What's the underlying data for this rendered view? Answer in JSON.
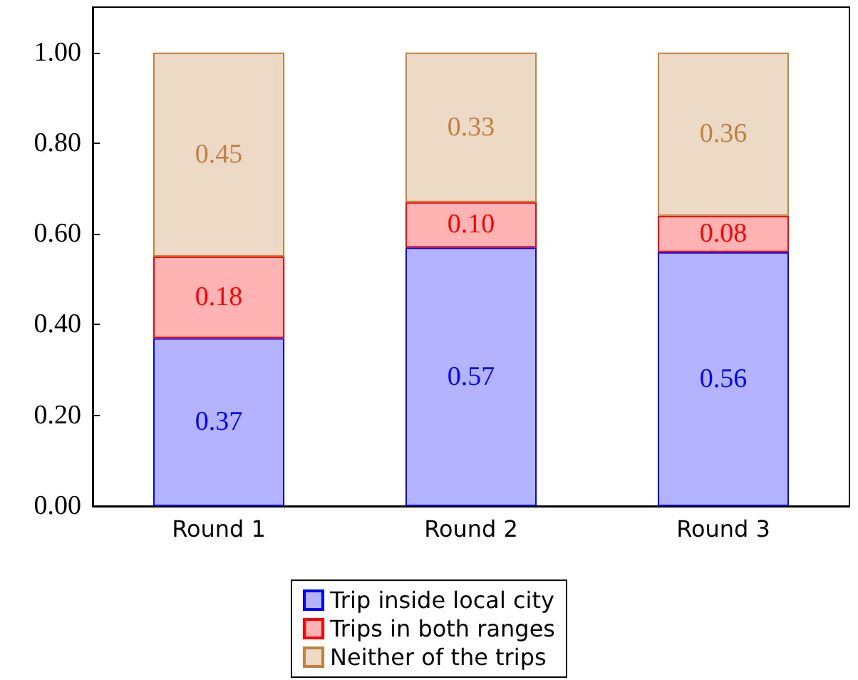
{
  "chart_data": {
    "type": "bar",
    "stacked": true,
    "categories": [
      "Round 1",
      "Round 2",
      "Round 3"
    ],
    "series": [
      {
        "name": "Trip inside local city",
        "color": "#b3b3ff",
        "values": [
          0.37,
          0.57,
          0.56
        ],
        "value_labels": [
          "0.37",
          "0.57",
          "0.56"
        ]
      },
      {
        "name": "Trips in both ranges",
        "color": "#ffb3b3",
        "values": [
          0.18,
          0.1,
          0.08
        ],
        "value_labels": [
          "0.18",
          "0.10",
          "0.08"
        ]
      },
      {
        "name": "Neither of the trips",
        "color": "#ecd9c6",
        "values": [
          0.45,
          0.33,
          0.36
        ],
        "value_labels": [
          "0.45",
          "0.33",
          "0.36"
        ]
      }
    ],
    "ylim": [
      0,
      1.1
    ],
    "yticks": [
      {
        "value": 0,
        "label": "0.00"
      },
      {
        "value": 0.2,
        "label": "0.20"
      },
      {
        "value": 0.4,
        "label": "0.40"
      },
      {
        "value": 0.6,
        "label": "0.60"
      },
      {
        "value": 0.8,
        "label": "0.80"
      },
      {
        "value": 1,
        "label": "1.00"
      }
    ],
    "legend": "bottom",
    "grid": false
  }
}
